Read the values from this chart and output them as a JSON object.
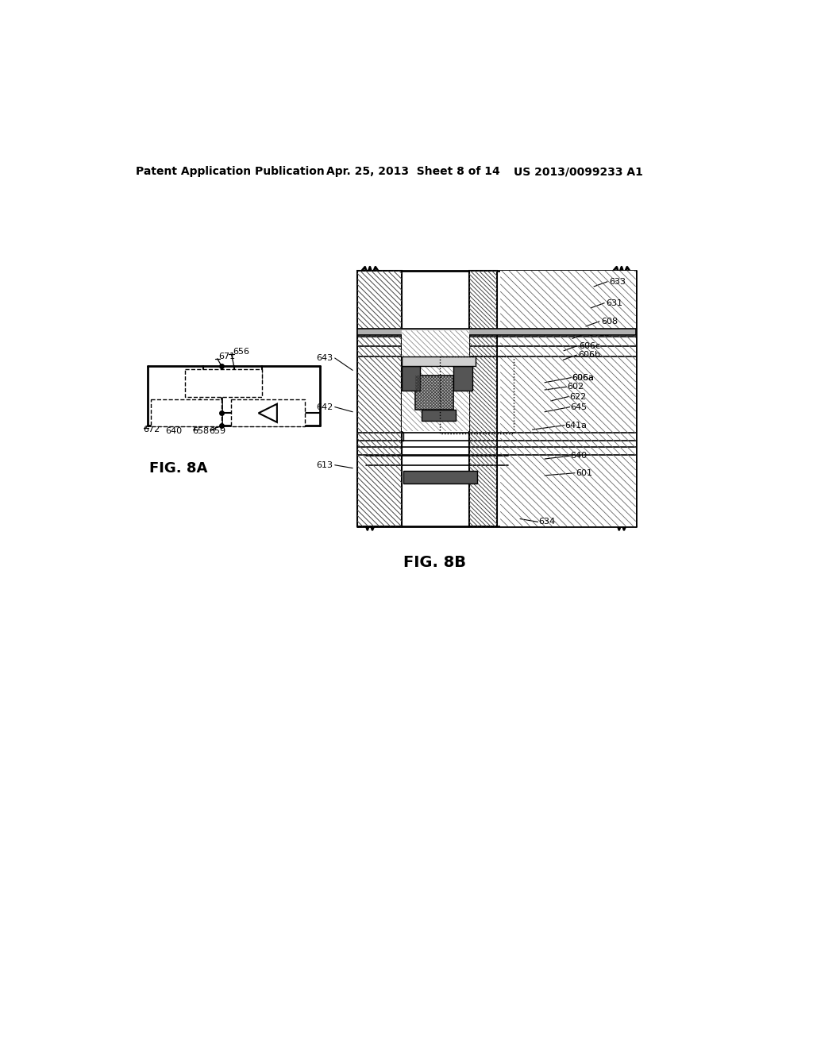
{
  "title_left": "Patent Application Publication",
  "title_center": "Apr. 25, 2013  Sheet 8 of 14",
  "title_right": "US 2013/0099233 A1",
  "fig8a_label": "FIG. 8A",
  "fig8b_label": "FIG. 8B",
  "bg": "#ffffff",
  "lc": "#000000",
  "fig8b": {
    "ML": 415,
    "MR": 870,
    "MT": 230,
    "MB": 665
  }
}
